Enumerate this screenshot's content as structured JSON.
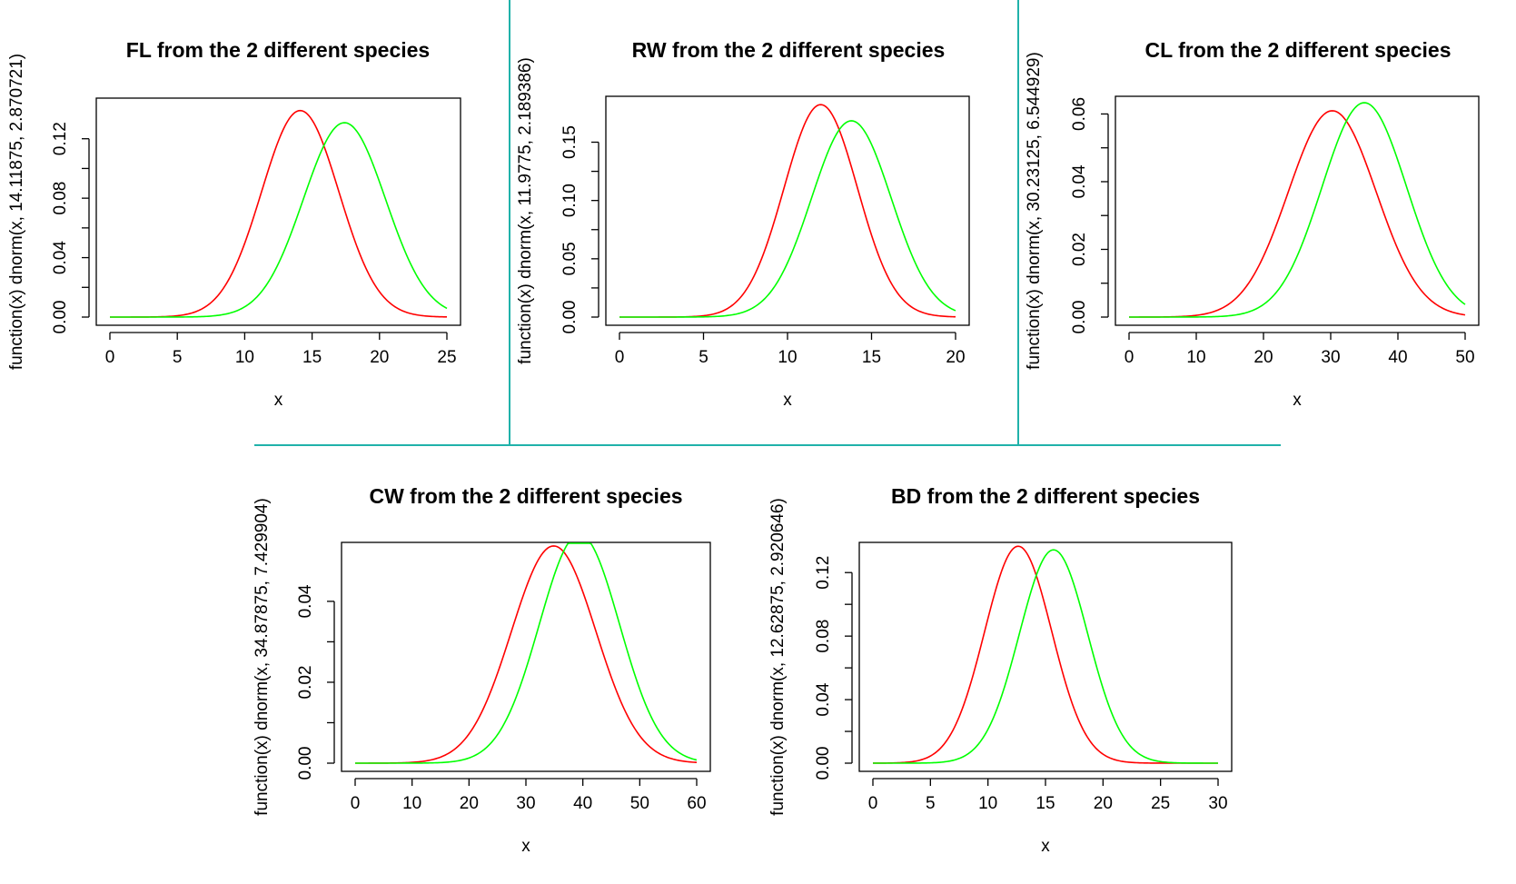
{
  "divider_color": "#20b2aa",
  "chart_data": [
    {
      "type": "line",
      "title": "FL from the 2 different species",
      "xlabel": "x",
      "ylabel": "function(x) dnorm(x, 14.11875, 2.870721)",
      "xlim": [
        0,
        25
      ],
      "ylim": [
        0,
        0.14
      ],
      "xticks": [
        0,
        5,
        10,
        15,
        20,
        25
      ],
      "xtick_labels": [
        "0",
        "5",
        "10",
        "15",
        "20",
        "25"
      ],
      "yticks": [
        0,
        0.04,
        0.08,
        0.12
      ],
      "ytick_labels": [
        "0.00",
        "0.04",
        "0.08",
        "0.12"
      ],
      "grid": false,
      "series": [
        {
          "mean": 14.11875,
          "sd": 2.870721,
          "color": "#ff0000"
        },
        {
          "mean": 17.4,
          "sd": 3.05,
          "color": "#00ff00"
        }
      ]
    },
    {
      "type": "line",
      "title": "RW from the 2 different species",
      "xlabel": "x",
      "ylabel": "function(x) dnorm(x, 11.9775, 2.189386)",
      "xlim": [
        0,
        20
      ],
      "ylim": [
        0,
        0.18
      ],
      "xticks": [
        0,
        5,
        10,
        15,
        20
      ],
      "xtick_labels": [
        "0",
        "5",
        "10",
        "15",
        "20"
      ],
      "yticks": [
        0,
        0.05,
        0.1,
        0.15
      ],
      "ytick_labels": [
        "0.00",
        "0.05",
        "0.10",
        "0.15"
      ],
      "grid": false,
      "series": [
        {
          "mean": 11.9775,
          "sd": 2.189386,
          "color": "#ff0000"
        },
        {
          "mean": 13.8,
          "sd": 2.37,
          "color": "#00ff00"
        }
      ]
    },
    {
      "type": "line",
      "title": "CL from the 2 different species",
      "xlabel": "x",
      "ylabel": "function(x) dnorm(x, 30.23125, 6.544929)",
      "xlim": [
        0,
        50
      ],
      "ylim": [
        0,
        0.062
      ],
      "xticks": [
        0,
        10,
        20,
        30,
        40,
        50
      ],
      "xtick_labels": [
        "0",
        "10",
        "20",
        "30",
        "40",
        "50"
      ],
      "yticks": [
        0,
        0.02,
        0.04,
        0.06
      ],
      "ytick_labels": [
        "0.00",
        "0.02",
        "0.04",
        "0.06"
      ],
      "grid": false,
      "series": [
        {
          "mean": 30.23125,
          "sd": 6.544929,
          "color": "#ff0000"
        },
        {
          "mean": 35.0,
          "sd": 6.3,
          "color": "#00ff00"
        }
      ]
    },
    {
      "type": "line",
      "title": "CW from the 2 different species",
      "xlabel": "x",
      "ylabel": "function(x) dnorm(x, 34.87875, 7.429904)",
      "xlim": [
        0,
        60
      ],
      "ylim": [
        0,
        0.053
      ],
      "xticks": [
        0,
        10,
        20,
        30,
        40,
        50,
        60
      ],
      "xtick_labels": [
        "0",
        "10",
        "20",
        "30",
        "40",
        "50",
        "60"
      ],
      "yticks": [
        0,
        0.02,
        0.04
      ],
      "ytick_labels": [
        "0.00",
        "0.02",
        "0.04"
      ],
      "grid": false,
      "series": [
        {
          "mean": 34.87875,
          "sd": 7.429904,
          "color": "#ff0000"
        },
        {
          "mean": 39.4,
          "sd": 7.05,
          "color": "#00ff00"
        }
      ]
    },
    {
      "type": "line",
      "title": "BD from the 2 different species",
      "xlabel": "x",
      "ylabel": "function(x) dnorm(x, 12.62875, 2.920646)",
      "xlim": [
        0,
        30
      ],
      "ylim": [
        0,
        0.135
      ],
      "xticks": [
        0,
        5,
        10,
        15,
        20,
        25,
        30
      ],
      "xtick_labels": [
        "0",
        "5",
        "10",
        "15",
        "20",
        "25",
        "30"
      ],
      "yticks": [
        0,
        0.04,
        0.08,
        0.12
      ],
      "ytick_labels": [
        "0.00",
        "0.04",
        "0.08",
        "0.12"
      ],
      "grid": false,
      "series": [
        {
          "mean": 12.62875,
          "sd": 2.920646,
          "color": "#ff0000"
        },
        {
          "mean": 15.7,
          "sd": 2.97,
          "color": "#00ff00"
        }
      ]
    }
  ]
}
